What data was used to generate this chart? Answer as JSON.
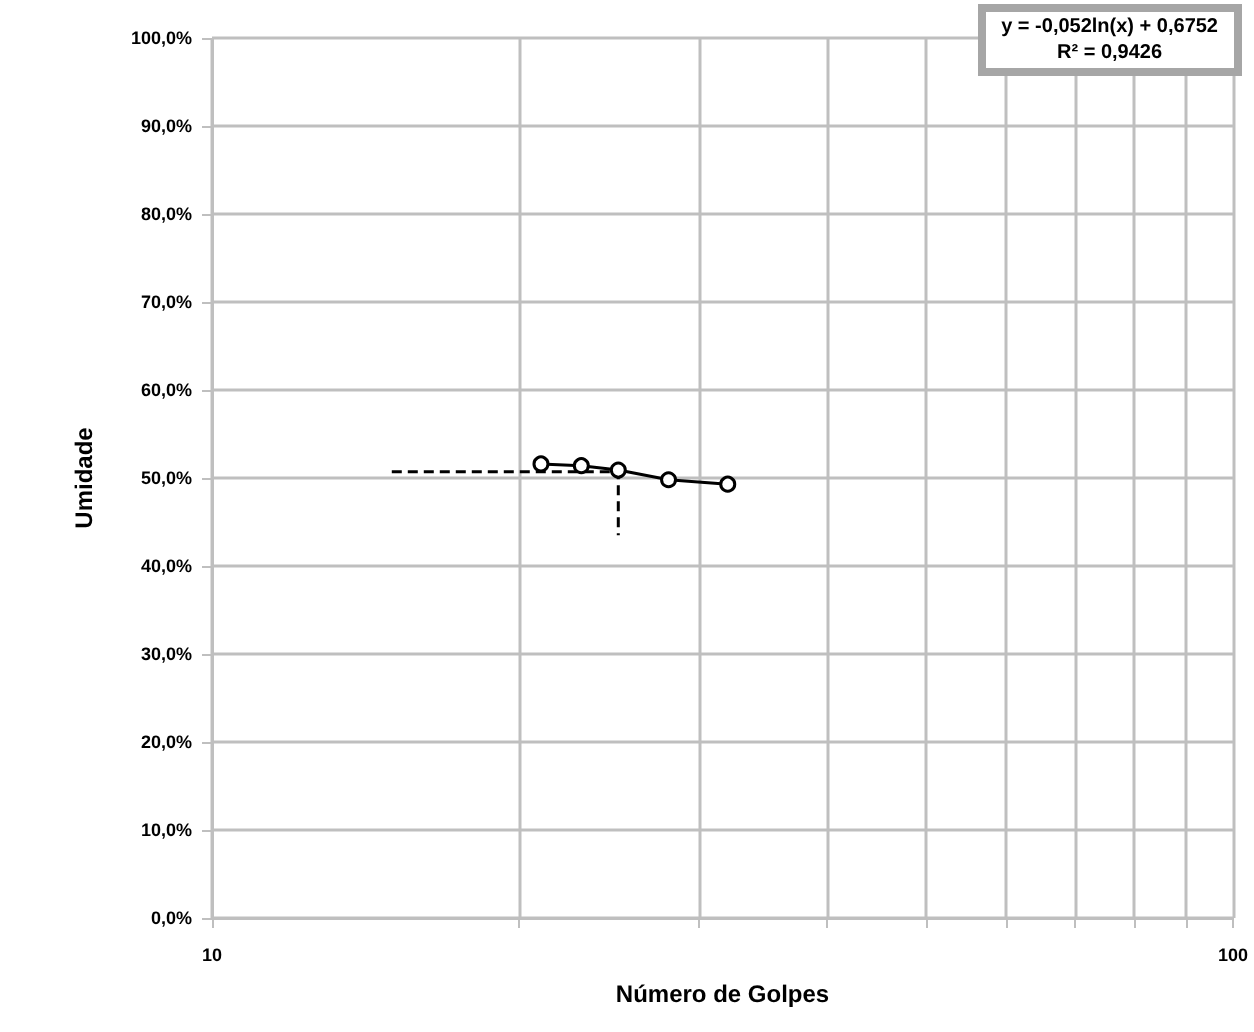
{
  "chart_data": {
    "type": "line",
    "xlabel": "Número de Golpes",
    "ylabel": "Umidade",
    "annotations": [
      "y = -0,052ln(x) + 0,6752",
      "R² = 0,9426"
    ],
    "series": [
      {
        "x": [
          21,
          23,
          25,
          28,
          32
        ],
        "values": [
          51.6,
          51.4,
          50.9,
          49.8,
          49.3
        ],
        "color": "#000000",
        "marker": "circle",
        "line_style": "solid"
      },
      {
        "x": [
          15,
          25,
          25
        ],
        "values": [
          50.7,
          50.7,
          43.5
        ],
        "color": "#000000",
        "marker": "none",
        "line_style": "dashed"
      }
    ],
    "log": "x",
    "xlim": [
      10,
      100
    ],
    "xticks": [
      10,
      {
        "value": 20,
        "label": null
      },
      {
        "value": 30,
        "label": null
      },
      {
        "value": 40,
        "label": null
      },
      {
        "value": 50,
        "label": null
      },
      {
        "value": 60,
        "label": null
      },
      {
        "value": 70,
        "label": null
      },
      {
        "value": 80,
        "label": null
      },
      {
        "value": 90,
        "label": null
      },
      100
    ],
    "ylim": [
      0,
      100
    ],
    "yticks": [
      {
        "value": 0,
        "label": "0,0%"
      },
      {
        "value": 10,
        "label": "10,0%"
      },
      {
        "value": 20,
        "label": "20,0%"
      },
      {
        "value": 30,
        "label": "30,0%"
      },
      {
        "value": 40,
        "label": "40,0%"
      },
      {
        "value": 50,
        "label": "50,0%"
      },
      {
        "value": 60,
        "label": "60,0%"
      },
      {
        "value": 70,
        "label": "70,0%"
      },
      {
        "value": 80,
        "label": "80,0%"
      },
      {
        "value": 90,
        "label": "90,0%"
      },
      {
        "value": 100,
        "label": "100,0%"
      }
    ],
    "grid": true
  }
}
